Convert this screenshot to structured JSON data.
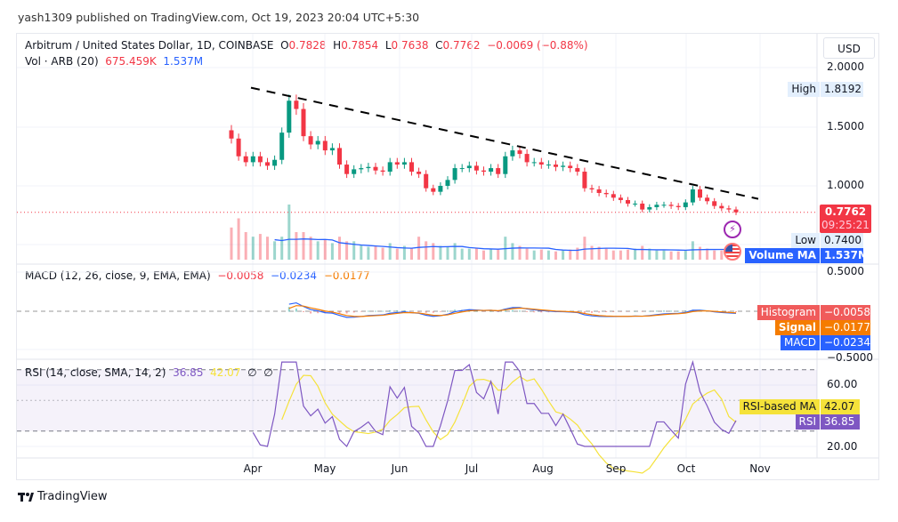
{
  "publisher_line": "yash1309 published on TradingView.com, Oct 19, 2023 20:04 UTC+5:30",
  "legend": {
    "symbol": "Arbitrum / United States Dollar, 1D, COINBASE",
    "o_label": "O",
    "o": "0.7828",
    "h_label": "H",
    "h": "0.7854",
    "l_label": "L",
    "l": "0.7638",
    "c_label": "C",
    "c": "0.7762",
    "change": "−0.0069 (−0.88%)",
    "vol_label": "Vol · ARB (20)",
    "vol": "675.459K",
    "vol_ma": "1.537M",
    "macd_label": "MACD (12, 26, close, 9, EMA, EMA)",
    "macd_hist": "−0.0058",
    "macd_macd": "−0.0234",
    "macd_signal": "−0.0177",
    "rsi_label": "RSI (14, close, SMA, 14, 2)",
    "rsi": "36.85",
    "rsi_ma": "42.07",
    "rsi_z1": "∅",
    "rsi_z2": "∅"
  },
  "currency_button": "USD",
  "price_axis": [
    "2.0000",
    "1.5000",
    "1.0000"
  ],
  "macd_axis": [
    "0.5000",
    "−0.5000"
  ],
  "rsi_axis": [
    "60.00",
    "20.00"
  ],
  "tags": {
    "high_label": "High",
    "high": "1.8192",
    "last_price": "0.7762",
    "countdown": "09:25:21",
    "low_label": "Low",
    "low": "0.7400",
    "volume_ma_label": "Volume MA",
    "volume_ma": "1.537M",
    "histogram_label": "Histogram",
    "histogram": "−0.0058",
    "signal_label": "Signal",
    "signal": "−0.0177",
    "macd_label": "MACD",
    "macd": "−0.0234",
    "rsi_ma_label": "RSI-based MA",
    "rsi_ma": "42.07",
    "rsi_label": "RSI",
    "rsi": "36.85"
  },
  "colors": {
    "up": "#089981",
    "down": "#f23645",
    "macd": "#2962ff",
    "signal": "#f57c00",
    "rsi": "#7e57c2",
    "rsi_ma": "#f5e23a",
    "volume_ma": "#2962ff"
  },
  "icons": [
    "lightning-icon",
    "us-flag-icon",
    "tradingview-logo-icon"
  ],
  "footer_brand": "TradingView",
  "chart_data": {
    "type": "candlestick",
    "interval": "3-day sampled closes (approx.)",
    "x": [
      "Mar 23",
      "Mar 26",
      "Mar 29",
      "Apr 1",
      "Apr 4",
      "Apr 7",
      "Apr 10",
      "Apr 13",
      "Apr 16",
      "Apr 19",
      "Apr 22",
      "Apr 25",
      "Apr 28",
      "May 1",
      "May 4",
      "May 7",
      "May 10",
      "May 13",
      "May 16",
      "May 19",
      "May 22",
      "May 25",
      "May 28",
      "May 31",
      "Jun 3",
      "Jun 6",
      "Jun 9",
      "Jun 12",
      "Jun 15",
      "Jun 18",
      "Jun 21",
      "Jun 24",
      "Jun 27",
      "Jun 30",
      "Jul 3",
      "Jul 6",
      "Jul 9",
      "Jul 12",
      "Jul 15",
      "Jul 18",
      "Jul 21",
      "Jul 24",
      "Jul 27",
      "Jul 30",
      "Aug 2",
      "Aug 5",
      "Aug 8",
      "Aug 11",
      "Aug 14",
      "Aug 17",
      "Aug 20",
      "Aug 23",
      "Aug 26",
      "Aug 29",
      "Sep 1",
      "Sep 4",
      "Sep 7",
      "Sep 10",
      "Sep 13",
      "Sep 16",
      "Sep 19",
      "Sep 22",
      "Sep 25",
      "Sep 28",
      "Oct 1",
      "Oct 4",
      "Oct 7",
      "Oct 10",
      "Oct 13",
      "Oct 16",
      "Oct 19"
    ],
    "close": [
      1.4,
      1.25,
      1.2,
      1.25,
      1.2,
      1.17,
      1.22,
      1.45,
      1.72,
      1.65,
      1.42,
      1.35,
      1.38,
      1.3,
      1.32,
      1.18,
      1.1,
      1.14,
      1.15,
      1.16,
      1.13,
      1.12,
      1.2,
      1.18,
      1.2,
      1.12,
      1.1,
      0.98,
      0.95,
      1.0,
      1.05,
      1.15,
      1.15,
      1.17,
      1.13,
      1.12,
      1.15,
      1.1,
      1.25,
      1.3,
      1.27,
      1.2,
      1.2,
      1.18,
      1.18,
      1.16,
      1.17,
      1.15,
      1.12,
      0.98,
      0.97,
      0.94,
      0.93,
      0.9,
      0.88,
      0.85,
      0.85,
      0.8,
      0.82,
      0.84,
      0.84,
      0.83,
      0.82,
      0.86,
      0.97,
      0.9,
      0.87,
      0.83,
      0.81,
      0.8,
      0.7762
    ],
    "volume_millions": [
      3.5,
      4.5,
      3,
      2.5,
      2.8,
      2.5,
      2,
      2.5,
      6,
      3,
      3,
      2.5,
      2,
      2.2,
      1.8,
      2.5,
      2,
      2,
      1.6,
      1.4,
      1.5,
      1.3,
      1.8,
      1.2,
      1.5,
      1.3,
      2.5,
      2,
      1.8,
      1.5,
      1.4,
      1.8,
      1.2,
      1.2,
      1.3,
      1,
      1.2,
      1.1,
      2.5,
      1.8,
      1.5,
      1.2,
      1,
      1.1,
      1,
      0.9,
      1,
      1.1,
      1.3,
      2.5,
      1.5,
      1.4,
      1.2,
      1,
      1,
      1.1,
      1.2,
      1.5,
      1.2,
      1,
      1,
      0.9,
      0.9,
      1,
      2,
      1.4,
      1.2,
      1,
      1,
      0.9,
      0.68
    ],
    "x_ticks": [
      "Apr",
      "May",
      "Jun",
      "Jul",
      "Aug",
      "Sep",
      "Oct",
      "Nov"
    ],
    "ylim": [
      0.5,
      2.0
    ],
    "trendline": {
      "from": [
        "Mar 31",
        1.83
      ],
      "to": [
        "Nov 1",
        0.89
      ],
      "style": "dashed"
    },
    "rsi_levels": [
      70,
      30
    ],
    "rsi_ylim": [
      10,
      80
    ]
  }
}
